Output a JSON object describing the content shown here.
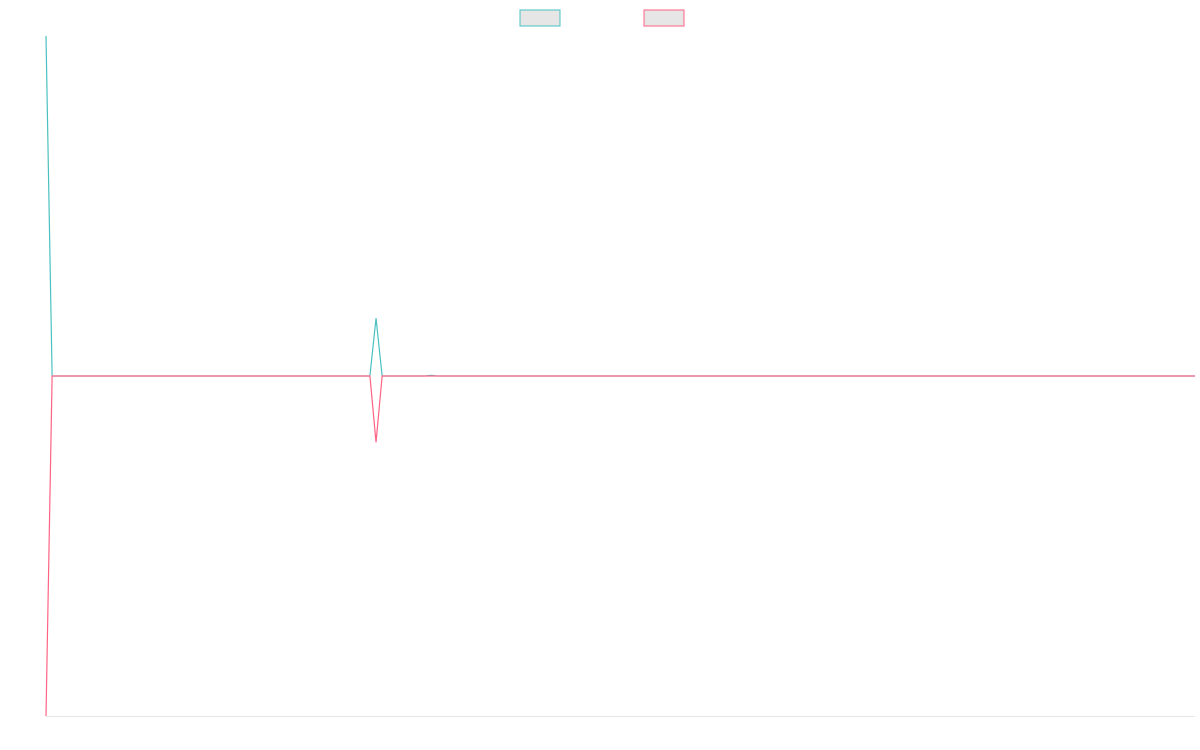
{
  "chart_data": {
    "type": "line",
    "title": "",
    "xlabel": "",
    "ylabel": "",
    "grid": false,
    "legend": "top-center",
    "ylim": [
      -100,
      100
    ],
    "x": [
      0,
      1,
      2,
      3,
      4,
      5,
      6,
      7,
      8,
      9,
      10,
      11,
      12,
      13,
      14,
      15,
      16,
      17,
      18,
      19,
      20,
      21,
      22,
      23,
      24,
      25,
      26,
      27,
      28,
      29,
      30,
      31,
      32,
      33,
      34,
      35,
      36,
      37,
      38,
      39,
      40,
      41,
      42,
      43,
      44,
      45,
      46,
      47,
      48,
      49,
      50,
      51,
      52,
      53,
      54,
      55,
      56,
      57,
      58,
      59,
      60,
      61,
      62,
      63,
      64,
      65,
      66,
      67,
      68,
      69,
      70,
      71,
      72,
      73,
      74,
      75,
      76,
      77,
      78,
      79,
      80,
      81,
      82,
      83,
      84,
      85,
      86,
      87,
      88,
      89,
      90,
      91,
      92,
      93,
      94,
      95,
      96,
      97,
      98,
      99,
      100,
      101,
      102,
      103,
      104,
      105,
      106,
      107,
      108,
      109,
      110,
      111,
      112,
      113,
      114,
      115,
      116,
      117,
      118,
      119,
      120,
      121,
      122,
      123,
      124,
      125,
      126,
      127,
      128,
      129,
      130,
      131,
      132,
      133,
      134,
      135,
      136,
      137,
      138,
      139,
      140,
      141,
      142,
      143,
      144,
      145,
      146,
      147,
      148,
      149,
      150,
      151,
      152,
      153,
      154,
      155,
      156,
      157,
      158,
      159,
      160,
      161,
      162,
      163,
      164,
      165,
      166,
      167,
      168,
      169,
      170,
      171,
      172,
      173,
      174,
      175,
      176,
      177,
      178,
      179,
      180,
      181,
      182,
      183,
      184,
      185,
      186,
      187,
      188
    ],
    "series": [
      {
        "color": "#4bc0c0",
        "values": [
          100,
          0,
          0,
          0,
          0,
          0,
          0,
          0,
          0,
          0,
          0,
          0,
          0,
          0,
          0,
          0,
          0,
          0,
          0,
          0,
          0,
          0,
          0,
          0,
          0,
          0,
          0,
          0,
          0,
          0,
          0,
          0,
          0,
          0,
          0,
          0,
          0,
          0,
          0,
          0,
          0,
          0,
          0,
          0,
          0,
          0,
          0,
          0,
          0,
          0,
          0,
          0,
          0,
          0,
          17,
          0,
          0,
          0,
          0,
          0,
          0,
          0,
          0,
          0.2,
          0,
          0,
          0,
          0,
          0,
          0,
          0,
          0,
          0,
          0,
          0,
          0,
          0,
          0,
          0,
          0,
          0,
          0,
          0,
          0,
          0,
          0,
          0,
          0,
          0,
          0,
          0,
          0,
          0,
          0,
          0,
          0,
          0,
          0,
          0,
          0,
          0,
          0,
          0,
          0,
          0,
          0,
          0,
          0,
          0,
          0,
          0,
          0,
          0,
          0,
          0,
          0,
          0,
          0,
          0,
          0,
          0,
          0,
          0,
          0,
          0,
          0,
          0,
          0,
          0,
          0,
          0,
          0,
          0,
          0,
          0,
          0,
          0,
          0,
          0,
          0,
          0,
          0,
          0,
          0,
          0,
          0,
          0,
          0,
          0,
          0,
          0,
          0,
          0,
          0,
          0,
          0,
          0,
          0,
          0,
          0,
          0,
          0,
          0,
          0,
          0,
          0,
          0,
          0,
          0,
          0,
          0,
          0,
          0,
          0,
          0,
          0,
          0,
          0,
          0,
          0,
          0,
          0,
          0,
          0,
          0,
          0,
          0,
          0,
          0
        ]
      },
      {
        "color": "#ff6384",
        "values": [
          -100,
          0,
          0,
          0,
          0,
          0,
          0,
          0,
          0,
          0,
          0,
          0,
          0,
          0,
          0,
          0,
          0,
          0,
          0,
          0,
          0,
          0,
          0,
          0,
          0,
          0,
          0,
          0,
          0,
          0,
          0,
          0,
          0,
          0,
          0,
          0,
          0,
          0,
          0,
          0,
          0,
          0,
          0,
          0,
          0,
          0,
          0,
          0,
          0,
          0,
          0,
          0,
          0,
          0,
          -19.5,
          0,
          0,
          0,
          0,
          0,
          0,
          0,
          0,
          0,
          0,
          0,
          0,
          0,
          0,
          0,
          0,
          0,
          0,
          0,
          0,
          0,
          0,
          0,
          0,
          0,
          0,
          0,
          0,
          0,
          0,
          0,
          0,
          0,
          0,
          0,
          0,
          0,
          0,
          0,
          0,
          0,
          0,
          0,
          0,
          0,
          0,
          0,
          0,
          0,
          0,
          0,
          0,
          0,
          0,
          0,
          0,
          0,
          0,
          0,
          0,
          0,
          0,
          0,
          0,
          0,
          0,
          0,
          0,
          0,
          0,
          0,
          0,
          0,
          0,
          0,
          0,
          0,
          0,
          0,
          0,
          0,
          0,
          0,
          0,
          0,
          0,
          0,
          0,
          0,
          0,
          0,
          0,
          0,
          0,
          0,
          0,
          0,
          0,
          0,
          0,
          0,
          0,
          0,
          0,
          0,
          0,
          0,
          0,
          0,
          0,
          0,
          0,
          0,
          0,
          0,
          0,
          0,
          0,
          0,
          0,
          0,
          0,
          0,
          0,
          0,
          0,
          0,
          0,
          0,
          0,
          0,
          0,
          0,
          0
        ]
      }
    ]
  }
}
